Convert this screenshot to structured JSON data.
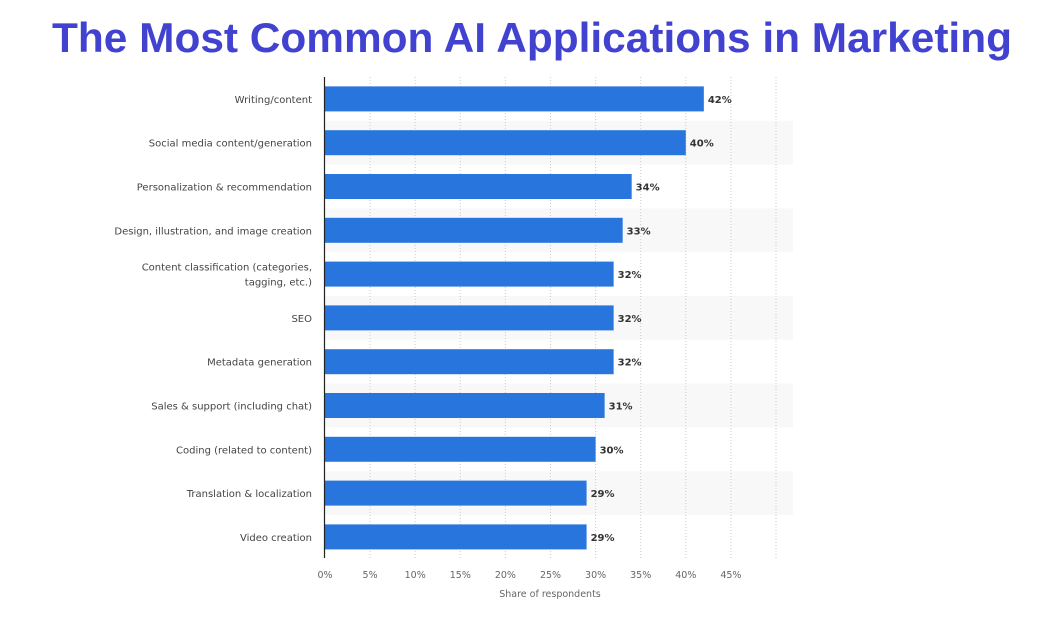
{
  "chart_data": {
    "type": "bar",
    "orientation": "horizontal",
    "title": "The Most Common AI Applications in Marketing",
    "xlabel": "Share of respondents",
    "ylabel": "",
    "xlim": [
      0,
      50
    ],
    "x_ticks": [
      "0%",
      "5%",
      "10%",
      "15%",
      "20%",
      "25%",
      "30%",
      "35%",
      "40%",
      "45%"
    ],
    "grid": "vertical dotted",
    "categories": [
      [
        "Writing/content"
      ],
      [
        "Social media content/generation"
      ],
      [
        "Personalization & recommendation"
      ],
      [
        "Design, illustration, and image creation"
      ],
      [
        "Content classification (categories,",
        "tagging, etc.)"
      ],
      [
        "SEO"
      ],
      [
        "Metadata generation"
      ],
      [
        "Sales & support (including chat)"
      ],
      [
        "Coding (related to content)"
      ],
      [
        "Translation & localization"
      ],
      [
        "Video creation"
      ]
    ],
    "values": [
      42,
      40,
      34,
      33,
      32,
      32,
      32,
      31,
      30,
      29,
      29
    ],
    "data_labels": [
      "42%",
      "40%",
      "34%",
      "33%",
      "32%",
      "32%",
      "32%",
      "31%",
      "30%",
      "29%",
      "29%"
    ],
    "colors": {
      "bar": "#2876dd",
      "title": "#4242d0",
      "band": "#f8f8f8"
    }
  }
}
